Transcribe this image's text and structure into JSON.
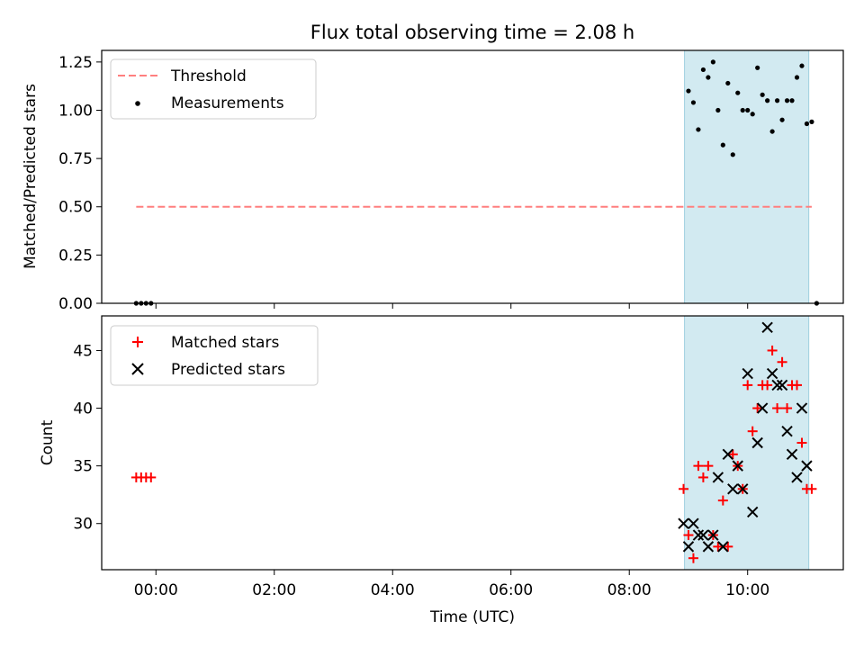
{
  "figure": {
    "title": "Flux total observing time = 2.08 h",
    "xlabel": "Time (UTC)"
  },
  "chart_data": [
    {
      "type": "scatter",
      "panel": "top",
      "ylabel": "Matched/Predicted stars",
      "xlim": [
        "-00:55",
        "11:37"
      ],
      "ylim": [
        0,
        1.31
      ],
      "yticks": [
        0.0,
        0.25,
        0.5,
        0.75,
        1.0,
        1.25
      ],
      "ytick_labels": [
        "0.00",
        "0.25",
        "0.50",
        "0.75",
        "1.00",
        "1.25"
      ],
      "legend_location": "upper-left",
      "threshold": {
        "name": "Threshold",
        "y": 0.5,
        "x_range": [
          "-00:20",
          "11:05"
        ],
        "color": "#ff7f7f",
        "style": "dashed"
      },
      "observing_window": {
        "start": "08:56",
        "end": "11:02",
        "color": "#add8e6"
      },
      "series": [
        {
          "name": "Measurements",
          "color": "#000000",
          "marker": "dot",
          "points": [
            {
              "x": "-00:20",
              "y": 0.0
            },
            {
              "x": "-00:15",
              "y": 0.0
            },
            {
              "x": "-00:10",
              "y": 0.0
            },
            {
              "x": "-00:05",
              "y": 0.0
            },
            {
              "x": "09:00",
              "y": 1.1
            },
            {
              "x": "09:05",
              "y": 1.04
            },
            {
              "x": "09:10",
              "y": 0.9
            },
            {
              "x": "09:15",
              "y": 1.21
            },
            {
              "x": "09:20",
              "y": 1.17
            },
            {
              "x": "09:25",
              "y": 1.25
            },
            {
              "x": "09:30",
              "y": 1.0
            },
            {
              "x": "09:35",
              "y": 0.82
            },
            {
              "x": "09:40",
              "y": 1.14
            },
            {
              "x": "09:45",
              "y": 0.77
            },
            {
              "x": "09:50",
              "y": 1.09
            },
            {
              "x": "09:55",
              "y": 1.0
            },
            {
              "x": "10:00",
              "y": 1.0
            },
            {
              "x": "10:05",
              "y": 0.98
            },
            {
              "x": "10:10",
              "y": 1.22
            },
            {
              "x": "10:15",
              "y": 1.08
            },
            {
              "x": "10:20",
              "y": 1.05
            },
            {
              "x": "10:25",
              "y": 0.89
            },
            {
              "x": "10:30",
              "y": 1.05
            },
            {
              "x": "10:35",
              "y": 0.95
            },
            {
              "x": "10:40",
              "y": 1.05
            },
            {
              "x": "10:45",
              "y": 1.05
            },
            {
              "x": "10:50",
              "y": 1.17
            },
            {
              "x": "10:55",
              "y": 1.23
            },
            {
              "x": "11:00",
              "y": 0.93
            },
            {
              "x": "11:05",
              "y": 0.94
            },
            {
              "x": "11:10",
              "y": 0.0
            }
          ]
        }
      ]
    },
    {
      "type": "scatter",
      "panel": "bottom",
      "ylabel": "Count",
      "xlabel": "Time (UTC)",
      "xlim": [
        "-00:55",
        "11:37"
      ],
      "ylim": [
        26,
        48
      ],
      "yticks": [
        30,
        35,
        40,
        45
      ],
      "xticks": [
        "00:00",
        "02:00",
        "04:00",
        "06:00",
        "08:00",
        "10:00"
      ],
      "legend_location": "upper-left",
      "observing_window": {
        "start": "08:56",
        "end": "11:02",
        "color": "#add8e6"
      },
      "series": [
        {
          "name": "Matched stars",
          "color": "#ff0000",
          "marker": "plus",
          "points": [
            {
              "x": "-00:20",
              "y": 34
            },
            {
              "x": "-00:15",
              "y": 34
            },
            {
              "x": "-00:10",
              "y": 34
            },
            {
              "x": "-00:05",
              "y": 34
            },
            {
              "x": "08:55",
              "y": 33
            },
            {
              "x": "09:00",
              "y": 29
            },
            {
              "x": "09:05",
              "y": 27
            },
            {
              "x": "09:10",
              "y": 35
            },
            {
              "x": "09:15",
              "y": 34
            },
            {
              "x": "09:20",
              "y": 35
            },
            {
              "x": "09:25",
              "y": 29
            },
            {
              "x": "09:30",
              "y": 28
            },
            {
              "x": "09:35",
              "y": 32
            },
            {
              "x": "09:40",
              "y": 28
            },
            {
              "x": "09:45",
              "y": 36
            },
            {
              "x": "09:50",
              "y": 35
            },
            {
              "x": "09:55",
              "y": 33
            },
            {
              "x": "10:00",
              "y": 42
            },
            {
              "x": "10:05",
              "y": 38
            },
            {
              "x": "10:10",
              "y": 40
            },
            {
              "x": "10:15",
              "y": 42
            },
            {
              "x": "10:20",
              "y": 42
            },
            {
              "x": "10:25",
              "y": 45
            },
            {
              "x": "10:30",
              "y": 40
            },
            {
              "x": "10:35",
              "y": 44
            },
            {
              "x": "10:40",
              "y": 40
            },
            {
              "x": "10:45",
              "y": 42
            },
            {
              "x": "10:50",
              "y": 42
            },
            {
              "x": "10:55",
              "y": 37
            },
            {
              "x": "11:00",
              "y": 33
            },
            {
              "x": "11:05",
              "y": 33
            }
          ]
        },
        {
          "name": "Predicted stars",
          "color": "#000000",
          "marker": "x",
          "points": [
            {
              "x": "08:55",
              "y": 30
            },
            {
              "x": "09:00",
              "y": 28
            },
            {
              "x": "09:05",
              "y": 30
            },
            {
              "x": "09:10",
              "y": 29
            },
            {
              "x": "09:15",
              "y": 29
            },
            {
              "x": "09:20",
              "y": 28
            },
            {
              "x": "09:25",
              "y": 29
            },
            {
              "x": "09:30",
              "y": 34
            },
            {
              "x": "09:35",
              "y": 28
            },
            {
              "x": "09:40",
              "y": 36
            },
            {
              "x": "09:45",
              "y": 33
            },
            {
              "x": "09:50",
              "y": 35
            },
            {
              "x": "09:55",
              "y": 33
            },
            {
              "x": "10:00",
              "y": 43
            },
            {
              "x": "10:05",
              "y": 31
            },
            {
              "x": "10:10",
              "y": 37
            },
            {
              "x": "10:15",
              "y": 40
            },
            {
              "x": "10:20",
              "y": 47
            },
            {
              "x": "10:25",
              "y": 43
            },
            {
              "x": "10:30",
              "y": 42
            },
            {
              "x": "10:35",
              "y": 42
            },
            {
              "x": "10:40",
              "y": 38
            },
            {
              "x": "10:45",
              "y": 36
            },
            {
              "x": "10:50",
              "y": 34
            },
            {
              "x": "10:55",
              "y": 40
            },
            {
              "x": "11:00",
              "y": 35
            }
          ]
        }
      ]
    }
  ]
}
